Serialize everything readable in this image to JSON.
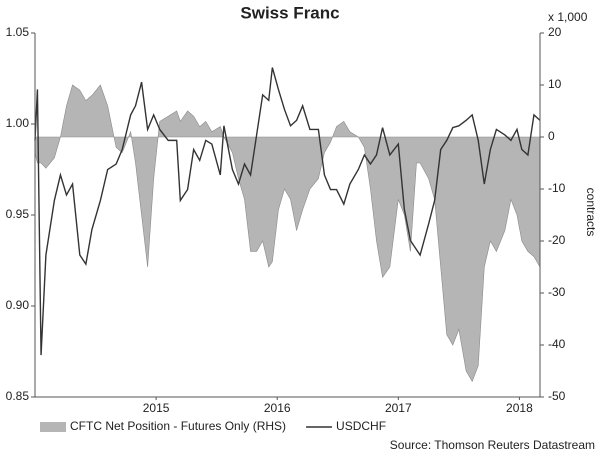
{
  "chart_data": {
    "type": "line",
    "title": "Swiss Franc",
    "x": [
      2014.5,
      2014.52,
      2014.55,
      2014.59,
      2014.66,
      2014.71,
      2014.76,
      2014.81,
      2014.87,
      2014.92,
      2014.97,
      2015.04,
      2015.1,
      2015.17,
      2015.22,
      2015.29,
      2015.33,
      2015.38,
      2015.43,
      2015.48,
      2015.53,
      2015.6,
      2015.67,
      2015.7,
      2015.76,
      2015.81,
      2015.86,
      2015.91,
      2015.96,
      2016.03,
      2016.06,
      2016.13,
      2016.18,
      2016.23,
      2016.28,
      2016.33,
      2016.38,
      2016.43,
      2016.46,
      2016.51,
      2016.56,
      2016.61,
      2016.66,
      2016.71,
      2016.77,
      2016.84,
      2016.89,
      2016.94,
      2016.99,
      2017.05,
      2017.1,
      2017.17,
      2017.22,
      2017.27,
      2017.32,
      2017.37,
      2017.43,
      2017.5,
      2017.55,
      2017.6,
      2017.65,
      2017.68,
      2017.75,
      2017.8,
      2017.85,
      2017.9,
      2017.95,
      2018.0,
      2018.06,
      2018.11,
      2018.16,
      2018.21,
      2018.26,
      2018.31,
      2018.38,
      2018.43,
      2018.48,
      2018.52,
      2018.57,
      2018.62,
      2018.67
    ],
    "xlim": [
      2014.5,
      2018.67
    ],
    "xticks": [
      {
        "value": 2015.5,
        "label": "2015"
      },
      {
        "value": 2016.5,
        "label": "2016"
      },
      {
        "value": 2017.5,
        "label": "2017"
      },
      {
        "value": 2018.5,
        "label": "2018"
      }
    ],
    "ylim": [
      0.85,
      1.05
    ],
    "yticks": [
      0.85,
      {
        "value": 0.9,
        "label": "0.90"
      },
      0.95,
      {
        "value": 1,
        "label": "1.00"
      },
      1.05
    ],
    "y2lim": [
      -50,
      20
    ],
    "y2ticks": [
      -50,
      -40,
      -30,
      -20,
      -10,
      0,
      10,
      20
    ],
    "y2_unit": "x 1,000",
    "y2label": "contracts",
    "legend": "bottom-left",
    "source": "Source: Thomson Reuters Datastream",
    "series": [
      {
        "name": "CFTC Net Position - Futures Only (RHS)",
        "kind": "area",
        "axis": "y2",
        "color": "#b5b5b5",
        "values": [
          -3,
          -5,
          -5,
          -6,
          -4,
          0,
          6,
          10,
          9,
          7,
          8,
          10,
          6,
          -2,
          -3,
          1,
          -5,
          -15,
          -25,
          -8,
          3,
          4,
          5,
          3,
          5,
          4,
          2,
          3,
          1,
          2,
          0,
          -3,
          -8,
          -12,
          -22,
          -22,
          -20,
          -25,
          -24,
          -14,
          -10,
          -12,
          -18,
          -14,
          -10,
          -8,
          -3,
          -1,
          2,
          3,
          1,
          0,
          -2,
          -10,
          -20,
          -27,
          -25,
          -12,
          -15,
          -22,
          -5,
          -5,
          -8,
          -12,
          -25,
          -38,
          -40,
          -37,
          -45,
          -47,
          -44,
          -25,
          -20,
          -22,
          -18,
          -12,
          -15,
          -20,
          -22,
          -23,
          -25
        ]
      },
      {
        "name": "USDCHF",
        "kind": "line",
        "color": "#333333",
        "values": [
          0.991,
          1.019,
          0.873,
          0.928,
          0.958,
          0.972,
          0.961,
          0.967,
          0.928,
          0.923,
          0.942,
          0.958,
          0.975,
          0.978,
          0.986,
          1.005,
          1.01,
          1.023,
          0.997,
          1.005,
          0.997,
          0.991,
          0.991,
          0.958,
          0.964,
          0.986,
          0.98,
          0.991,
          0.989,
          0.972,
          0.999,
          0.975,
          0.967,
          0.978,
          0.972,
          0.994,
          1.016,
          1.013,
          1.031,
          1.019,
          1.008,
          0.999,
          1.002,
          1.01,
          0.997,
          0.997,
          0.972,
          0.964,
          0.964,
          0.956,
          0.967,
          0.975,
          0.983,
          0.978,
          0.983,
          0.998,
          0.983,
          0.989,
          0.953,
          0.936,
          0.931,
          0.928,
          0.945,
          0.958,
          0.986,
          0.991,
          0.998,
          0.999,
          1.002,
          1.005,
          0.991,
          0.967,
          0.986,
          0.997,
          0.994,
          0.991,
          0.997,
          0.986,
          0.983,
          1.005,
          1.002
        ]
      }
    ]
  }
}
